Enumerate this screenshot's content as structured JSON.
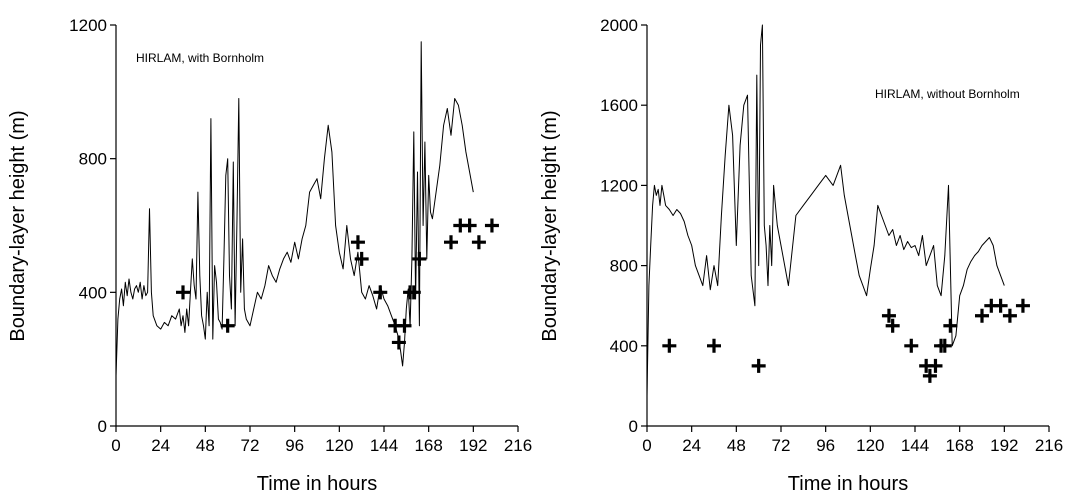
{
  "chart_data": [
    {
      "type": "line",
      "annotation": "HIRLAM, with Bornholm",
      "xlabel": "Time in hours",
      "ylabel": "Boundary-layer height (m)",
      "xlim": [
        0,
        216
      ],
      "ylim": [
        0,
        1200
      ],
      "x_ticks": [
        "0",
        "24",
        "48",
        "72",
        "96",
        "120",
        "144",
        "168",
        "192",
        "216"
      ],
      "y_ticks": [
        "0",
        "400",
        "800",
        "1200"
      ],
      "series": [
        {
          "kind": "line",
          "x": [
            0,
            1,
            2,
            3,
            4,
            5,
            6,
            7,
            8,
            9,
            10,
            11,
            12,
            13,
            14,
            15,
            16,
            17,
            18,
            19,
            20,
            22,
            24,
            26,
            28,
            30,
            32,
            34,
            35,
            36,
            37,
            38,
            39,
            40,
            41,
            42,
            43,
            44,
            45,
            46,
            47,
            48,
            49,
            50,
            51,
            52,
            53,
            54,
            55,
            56,
            57,
            58,
            59,
            60,
            61,
            62,
            63,
            64,
            65,
            66,
            67,
            68,
            69,
            70,
            72,
            74,
            76,
            78,
            80,
            82,
            84,
            86,
            88,
            90,
            92,
            94,
            96,
            98,
            100,
            102,
            104,
            106,
            108,
            110,
            112,
            114,
            116,
            118,
            120,
            122,
            124,
            126,
            128,
            130,
            132,
            134,
            136,
            138,
            140,
            142,
            144,
            146,
            148,
            150,
            152,
            153,
            154,
            155,
            156,
            157,
            158,
            159,
            160,
            161,
            162,
            163,
            164,
            165,
            166,
            167,
            168,
            169,
            170,
            172,
            174,
            176,
            178,
            180,
            182,
            184,
            186,
            188,
            190,
            192
          ],
          "y": [
            150,
            320,
            380,
            410,
            360,
            430,
            390,
            440,
            400,
            380,
            410,
            420,
            400,
            430,
            380,
            420,
            390,
            400,
            650,
            400,
            330,
            300,
            290,
            310,
            300,
            330,
            320,
            350,
            300,
            330,
            280,
            350,
            300,
            400,
            500,
            420,
            380,
            700,
            450,
            330,
            300,
            260,
            400,
            300,
            920,
            260,
            480,
            430,
            320,
            310,
            290,
            500,
            750,
            800,
            450,
            350,
            790,
            300,
            620,
            980,
            400,
            560,
            350,
            320,
            300,
            350,
            400,
            380,
            420,
            480,
            450,
            430,
            470,
            500,
            520,
            490,
            550,
            500,
            560,
            600,
            700,
            720,
            740,
            680,
            800,
            900,
            820,
            600,
            520,
            470,
            600,
            500,
            450,
            520,
            400,
            380,
            420,
            390,
            350,
            420,
            380,
            360,
            330,
            300,
            260,
            220,
            180,
            250,
            350,
            410,
            300,
            500,
            880,
            380,
            760,
            300,
            1150,
            600,
            850,
            500,
            750,
            640,
            620,
            700,
            780,
            900,
            950,
            870,
            980,
            960,
            900,
            820,
            760,
            700
          ]
        },
        {
          "kind": "marker",
          "marker": "plus",
          "x": [
            36,
            60,
            130,
            132,
            142,
            150,
            152,
            155,
            158,
            160,
            163,
            180,
            185,
            190,
            195,
            202
          ],
          "y": [
            400,
            300,
            550,
            500,
            400,
            300,
            250,
            300,
            400,
            400,
            500,
            550,
            600,
            600,
            550,
            600
          ]
        }
      ]
    },
    {
      "type": "line",
      "annotation": "HIRLAM, without Bornholm",
      "xlabel": "Time in hours",
      "ylabel": "Boundary-layer height (m)",
      "xlim": [
        0,
        216
      ],
      "ylim": [
        0,
        2000
      ],
      "x_ticks": [
        "0",
        "24",
        "48",
        "72",
        "96",
        "120",
        "144",
        "168",
        "192",
        "216"
      ],
      "y_ticks": [
        "0",
        "400",
        "800",
        "1200",
        "1600",
        "2000"
      ],
      "series": [
        {
          "kind": "line",
          "x": [
            0,
            1,
            2,
            3,
            4,
            5,
            6,
            7,
            8,
            9,
            10,
            12,
            14,
            16,
            18,
            20,
            22,
            24,
            26,
            28,
            30,
            32,
            34,
            36,
            38,
            40,
            42,
            44,
            46,
            48,
            50,
            52,
            54,
            56,
            58,
            59,
            60,
            61,
            62,
            63,
            64,
            65,
            66,
            67,
            68,
            70,
            72,
            76,
            80,
            84,
            88,
            92,
            96,
            100,
            104,
            106,
            108,
            110,
            112,
            114,
            116,
            118,
            120,
            122,
            124,
            126,
            128,
            130,
            132,
            134,
            136,
            138,
            140,
            142,
            144,
            146,
            148,
            150,
            152,
            154,
            156,
            158,
            160,
            162,
            164,
            166,
            168,
            170,
            172,
            174,
            176,
            178,
            180,
            182,
            184,
            186,
            188,
            190,
            192
          ],
          "y": [
            150,
            700,
            900,
            1100,
            1200,
            1150,
            1180,
            1100,
            1200,
            1150,
            1100,
            1080,
            1050,
            1080,
            1060,
            1020,
            950,
            900,
            800,
            750,
            700,
            850,
            680,
            800,
            700,
            1050,
            1350,
            1600,
            1450,
            900,
            1400,
            1600,
            1650,
            750,
            600,
            1750,
            800,
            1900,
            2000,
            1000,
            900,
            700,
            1000,
            800,
            1200,
            1000,
            900,
            700,
            1050,
            1100,
            1150,
            1200,
            1250,
            1200,
            1300,
            1150,
            1050,
            950,
            850,
            750,
            700,
            650,
            780,
            900,
            1100,
            1050,
            1000,
            950,
            980,
            900,
            950,
            880,
            920,
            890,
            900,
            850,
            950,
            800,
            850,
            900,
            700,
            650,
            850,
            1200,
            400,
            450,
            650,
            700,
            780,
            820,
            850,
            870,
            900,
            920,
            940,
            900,
            800,
            750,
            700
          ]
        },
        {
          "kind": "marker",
          "marker": "plus",
          "x": [
            12,
            36,
            60,
            130,
            132,
            142,
            150,
            152,
            155,
            158,
            160,
            163,
            180,
            185,
            190,
            195,
            202
          ],
          "y": [
            400,
            400,
            300,
            550,
            500,
            400,
            300,
            250,
            300,
            400,
            400,
            500,
            550,
            600,
            600,
            550,
            600
          ]
        }
      ]
    }
  ]
}
